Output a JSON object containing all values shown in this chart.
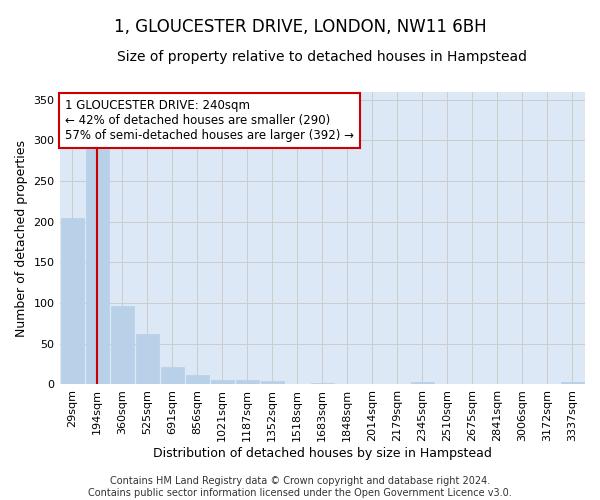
{
  "title": "1, GLOUCESTER DRIVE, LONDON, NW11 6BH",
  "subtitle": "Size of property relative to detached houses in Hampstead",
  "xlabel": "Distribution of detached houses by size in Hampstead",
  "ylabel": "Number of detached properties",
  "bar_labels": [
    "29sqm",
    "194sqm",
    "360sqm",
    "525sqm",
    "691sqm",
    "856sqm",
    "1021sqm",
    "1187sqm",
    "1352sqm",
    "1518sqm",
    "1683sqm",
    "1848sqm",
    "2014sqm",
    "2179sqm",
    "2345sqm",
    "2510sqm",
    "2675sqm",
    "2841sqm",
    "3006sqm",
    "3172sqm",
    "3337sqm"
  ],
  "bar_values": [
    204,
    290,
    97,
    62,
    21,
    12,
    6,
    5,
    4,
    0,
    2,
    0,
    0,
    0,
    3,
    0,
    0,
    0,
    0,
    0,
    3
  ],
  "bar_color": "#b8d0e8",
  "bar_edge_color": "#b8d0e8",
  "vline_x": 1,
  "vline_color": "#cc0000",
  "annotation_text": "1 GLOUCESTER DRIVE: 240sqm\n← 42% of detached houses are smaller (290)\n57% of semi-detached houses are larger (392) →",
  "annotation_box_color": "#ffffff",
  "annotation_box_edge": "#cc0000",
  "ylim": [
    0,
    360
  ],
  "yticks": [
    0,
    50,
    100,
    150,
    200,
    250,
    300,
    350
  ],
  "grid_color": "#cccccc",
  "bg_color": "#dce8f5",
  "fig_bg_color": "#ffffff",
  "footnote": "Contains HM Land Registry data © Crown copyright and database right 2024.\nContains public sector information licensed under the Open Government Licence v3.0.",
  "title_fontsize": 12,
  "subtitle_fontsize": 10,
  "xlabel_fontsize": 9,
  "ylabel_fontsize": 9,
  "tick_fontsize": 8,
  "annot_fontsize": 8.5,
  "footnote_fontsize": 7
}
